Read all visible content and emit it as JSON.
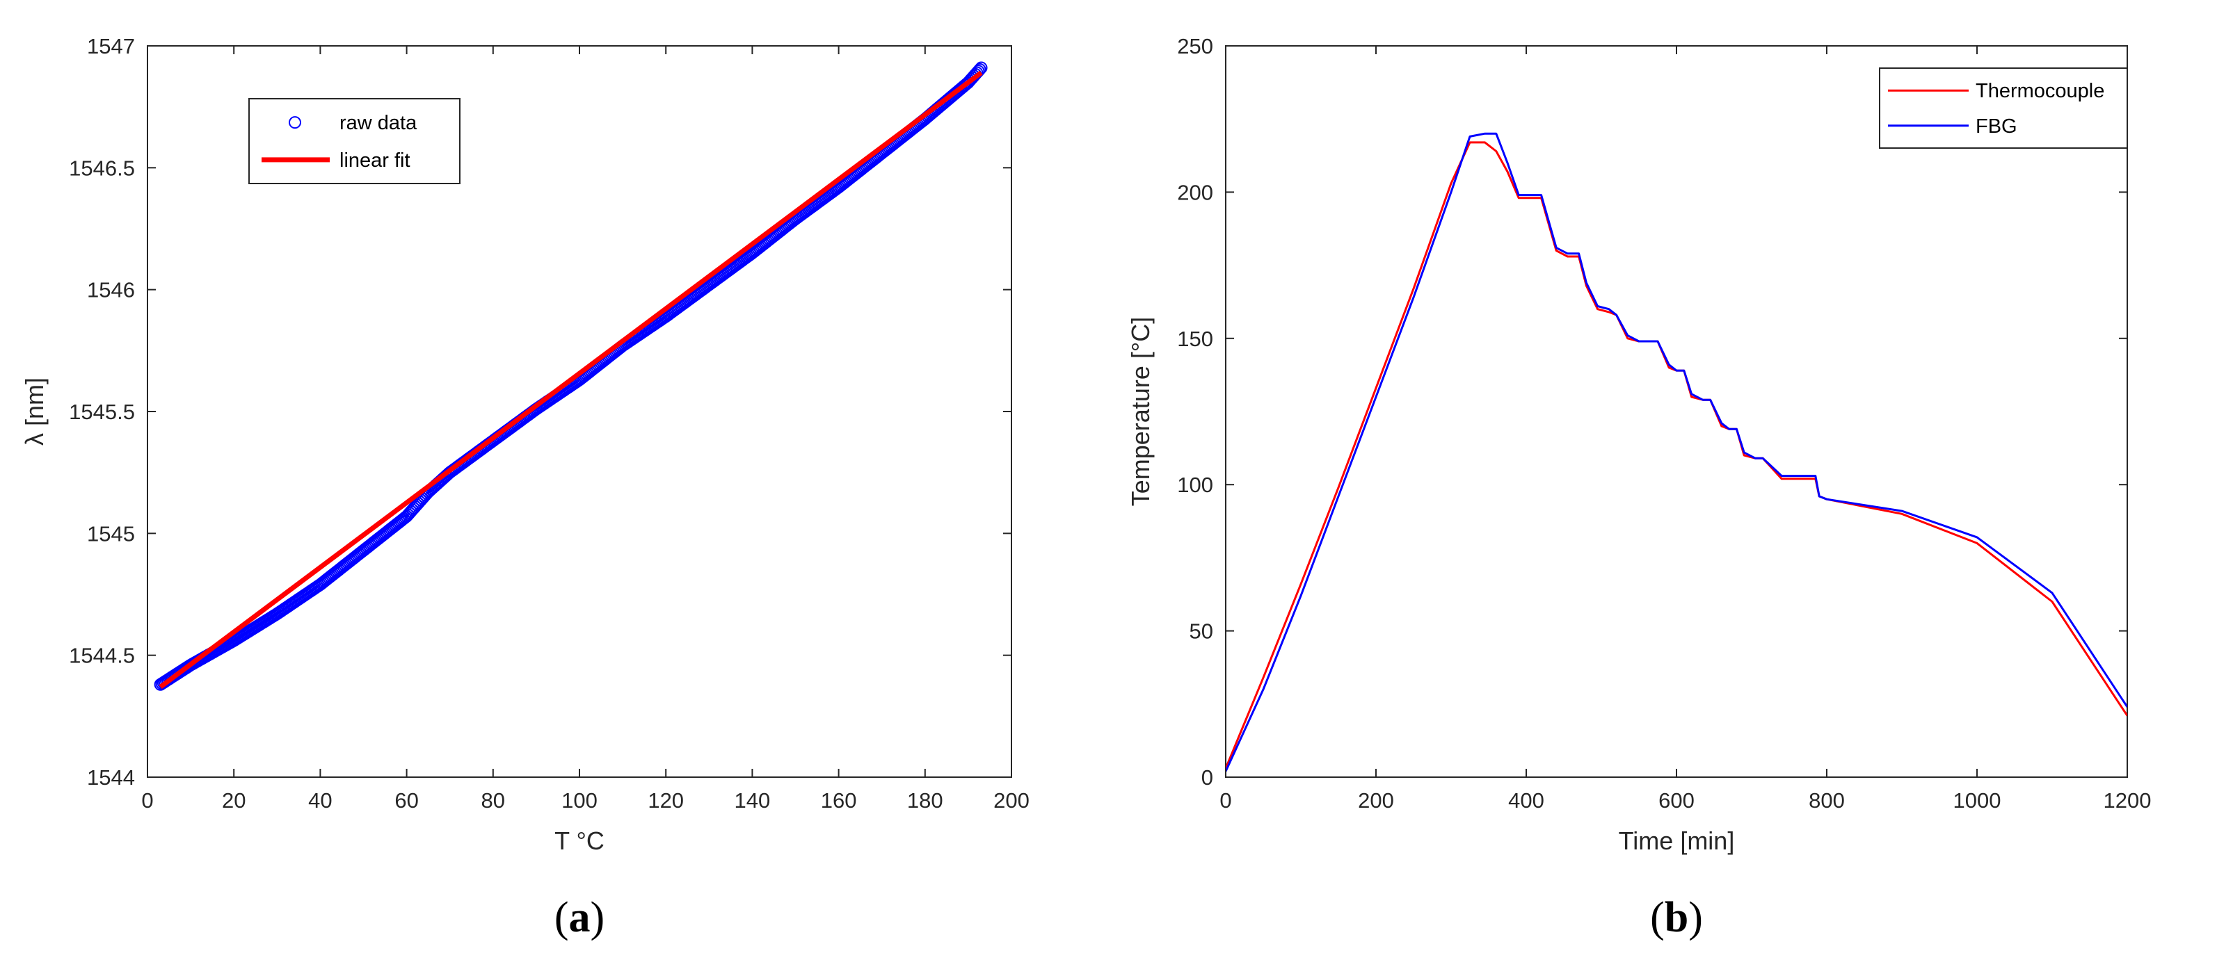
{
  "colors": {
    "raw_data": "#0000ff",
    "linear_fit": "#ff0000",
    "thermocouple": "#ff0000",
    "fbg": "#0000ff",
    "axis": "#262626"
  },
  "chart_data": [
    {
      "panel": "(a)",
      "panel_letter": "a",
      "type": "scatter",
      "xlabel": "T °C",
      "ylabel": "λ [nm]",
      "xlim": [
        0,
        200
      ],
      "ylim": [
        1544,
        1547
      ],
      "xticks": [
        0,
        20,
        40,
        60,
        80,
        100,
        120,
        140,
        160,
        180,
        200
      ],
      "yticks": [
        1544,
        1544.5,
        1545,
        1545.5,
        1546,
        1546.5,
        1547
      ],
      "ytick_labels": [
        "1544",
        "1544.5",
        "1545",
        "1545.5",
        "1546",
        "1546.5",
        "1547"
      ],
      "grid": false,
      "legend": {
        "placement": "top-left",
        "entries": [
          "raw data",
          "linear fit"
        ]
      },
      "series": [
        {
          "name": "raw data",
          "kind": "markers",
          "x": [
            3,
            10,
            20,
            30,
            40,
            50,
            60,
            65,
            70,
            80,
            90,
            100,
            110,
            120,
            130,
            140,
            150,
            160,
            170,
            180,
            190,
            193
          ],
          "y": [
            1544.38,
            1544.46,
            1544.56,
            1544.67,
            1544.79,
            1544.93,
            1545.07,
            1545.17,
            1545.25,
            1545.38,
            1545.51,
            1545.63,
            1545.77,
            1545.89,
            1546.02,
            1546.15,
            1546.29,
            1546.42,
            1546.56,
            1546.7,
            1546.85,
            1546.91
          ]
        },
        {
          "name": "linear fit",
          "kind": "line",
          "x": [
            3,
            193
          ],
          "y": [
            1544.37,
            1546.89
          ]
        }
      ]
    },
    {
      "panel": "(b)",
      "panel_letter": "b",
      "type": "line",
      "xlabel": "Time [min]",
      "ylabel": "Temperature [°C]",
      "xlim": [
        0,
        1200
      ],
      "ylim": [
        0,
        250
      ],
      "xticks": [
        0,
        200,
        400,
        600,
        800,
        1000,
        1200
      ],
      "yticks": [
        0,
        50,
        100,
        150,
        200,
        250
      ],
      "grid": false,
      "legend": {
        "placement": "top-right",
        "entries": [
          "Thermocouple",
          "FBG"
        ]
      },
      "series": [
        {
          "name": "Thermocouple",
          "x": [
            0,
            50,
            100,
            150,
            200,
            250,
            300,
            325,
            345,
            360,
            375,
            390,
            405,
            420,
            440,
            455,
            470,
            480,
            495,
            510,
            520,
            535,
            550,
            565,
            575,
            590,
            600,
            610,
            620,
            635,
            645,
            660,
            670,
            680,
            690,
            705,
            715,
            740,
            750,
            760,
            785,
            790,
            800,
            900,
            1000,
            1100,
            1200
          ],
          "y": [
            3,
            34,
            66,
            99,
            133,
            167,
            203,
            217,
            217,
            214,
            207,
            198,
            198,
            198,
            180,
            178,
            178,
            168,
            160,
            159,
            158,
            150,
            149,
            149,
            149,
            140,
            139,
            139,
            130,
            129,
            129,
            120,
            119,
            119,
            110,
            109,
            109,
            102,
            102,
            102,
            102,
            96,
            95,
            90,
            80,
            60,
            21
          ]
        },
        {
          "name": "FBG",
          "x": [
            0,
            50,
            100,
            150,
            200,
            250,
            300,
            325,
            345,
            360,
            375,
            390,
            405,
            420,
            440,
            455,
            470,
            480,
            495,
            510,
            520,
            535,
            550,
            565,
            575,
            590,
            600,
            610,
            620,
            635,
            645,
            660,
            670,
            680,
            690,
            705,
            715,
            740,
            750,
            760,
            785,
            790,
            800,
            900,
            1000,
            1100,
            1200
          ],
          "y": [
            2,
            30,
            62,
            96,
            130,
            164,
            200,
            219,
            220,
            220,
            210,
            199,
            199,
            199,
            181,
            179,
            179,
            169,
            161,
            160,
            158,
            151,
            149,
            149,
            149,
            141,
            139,
            139,
            131,
            129,
            129,
            121,
            119,
            119,
            111,
            109,
            109,
            103,
            103,
            103,
            103,
            96,
            95,
            91,
            82,
            63,
            24
          ]
        }
      ]
    }
  ]
}
